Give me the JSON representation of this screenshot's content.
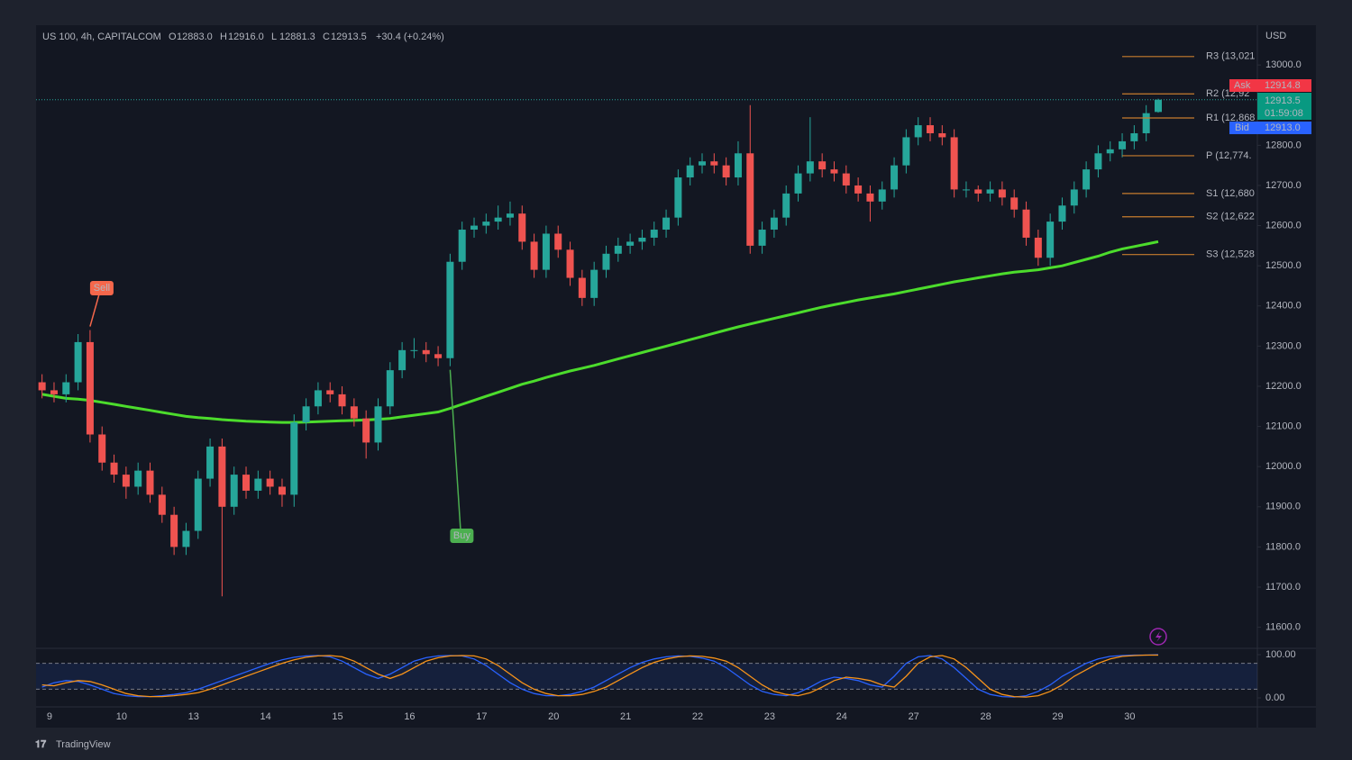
{
  "chart_data": {
    "type": "candlestick",
    "title": "US 100, 4h, CAPITALCOM",
    "ohlc_legend": [
      {
        "label": "O",
        "value": "12883.0"
      },
      {
        "label": "H",
        "value": "12916.0"
      },
      {
        "label": "L",
        "value": "12881.3"
      },
      {
        "label": "C",
        "value": "12913.5"
      }
    ],
    "change": "+30.4 (+0.24%)",
    "currency": "USD",
    "up_color": "#26a69a",
    "down_color": "#ef5350",
    "grid": false,
    "categories": [
      null,
      "9",
      null,
      null,
      null,
      null,
      null,
      "10",
      null,
      null,
      null,
      null,
      null,
      "13",
      null,
      null,
      null,
      null,
      null,
      "14",
      null,
      null,
      null,
      null,
      null,
      "15",
      null,
      null,
      null,
      null,
      null,
      "16",
      null,
      null,
      null,
      null,
      null,
      "17",
      null,
      null,
      null,
      null,
      null,
      "20",
      null,
      null,
      null,
      null,
      null,
      "21",
      null,
      null,
      null,
      null,
      null,
      "22",
      null,
      null,
      null,
      null,
      null,
      "23",
      null,
      null,
      null,
      null,
      null,
      "24",
      null,
      null,
      null,
      null,
      null,
      "27",
      null,
      null,
      null,
      null,
      null,
      "28",
      null,
      null,
      null,
      null,
      null,
      "29",
      null,
      null,
      null,
      null,
      null,
      "30",
      null,
      null
    ],
    "open": [
      12210,
      12190,
      12180,
      12210,
      12310,
      12080,
      12010,
      11980,
      11950,
      11990,
      11930,
      11880,
      11800,
      11840,
      11970,
      12050,
      11900,
      11980,
      11940,
      11970,
      11950,
      11930,
      12110,
      12150,
      12190,
      12180,
      12150,
      12120,
      12060,
      12150,
      12240,
      12290,
      12290,
      12280,
      12270,
      12510,
      12590,
      12600,
      12610,
      12620,
      12630,
      12560,
      12490,
      12580,
      12540,
      12470,
      12420,
      12490,
      12530,
      12550,
      12560,
      12570,
      12590,
      12620,
      12720,
      12750,
      12760,
      12750,
      12720,
      12780,
      12550,
      12590,
      12620,
      12680,
      12730,
      12760,
      12740,
      12730,
      12700,
      12680,
      12660,
      12690,
      12750,
      12820,
      12850,
      12830,
      12820,
      12690,
      12690,
      12680,
      12690,
      12670,
      12640,
      12570,
      12520,
      12610,
      12650,
      12690,
      12740,
      12780,
      12790,
      12810,
      12830,
      12883
    ],
    "high": [
      12230,
      12210,
      12230,
      12330,
      12340,
      12100,
      12030,
      12000,
      12010,
      12010,
      11950,
      11900,
      11860,
      11990,
      12070,
      12070,
      12000,
      12000,
      11990,
      11990,
      11970,
      12130,
      12170,
      12210,
      12210,
      12200,
      12170,
      12140,
      12170,
      12260,
      12310,
      12320,
      12310,
      12300,
      12530,
      12610,
      12620,
      12630,
      12650,
      12660,
      12650,
      12580,
      12600,
      12600,
      12560,
      12490,
      12510,
      12550,
      12570,
      12580,
      12590,
      12610,
      12640,
      12740,
      12770,
      12780,
      12780,
      12770,
      12810,
      12900,
      12610,
      12640,
      12700,
      12750,
      12870,
      12780,
      12760,
      12750,
      12720,
      12700,
      12710,
      12770,
      12840,
      12870,
      12870,
      12850,
      12840,
      12710,
      12700,
      12710,
      12710,
      12690,
      12660,
      12590,
      12630,
      12670,
      12710,
      12760,
      12800,
      12810,
      12830,
      12850,
      12900,
      12916
    ],
    "low": [
      12170,
      12160,
      12160,
      12190,
      12060,
      11990,
      11960,
      11920,
      11930,
      11910,
      11860,
      11780,
      11780,
      11820,
      11950,
      11677,
      11880,
      11920,
      11920,
      11930,
      11900,
      11900,
      12090,
      12130,
      12160,
      12130,
      12100,
      12020,
      12040,
      12130,
      12220,
      12270,
      12260,
      12250,
      12250,
      12490,
      12570,
      12580,
      12590,
      12600,
      12540,
      12470,
      12470,
      12520,
      12450,
      12400,
      12400,
      12470,
      12510,
      12530,
      12540,
      12550,
      12570,
      12600,
      12700,
      12730,
      12730,
      12700,
      12700,
      12530,
      12530,
      12570,
      12600,
      12660,
      12710,
      12720,
      12710,
      12680,
      12660,
      12610,
      12640,
      12670,
      12730,
      12800,
      12810,
      12800,
      12670,
      12670,
      12660,
      12660,
      12650,
      12620,
      12550,
      12500,
      12500,
      12590,
      12630,
      12670,
      12720,
      12760,
      12770,
      12790,
      12810,
      12881.3
    ],
    "close": [
      12190,
      12180,
      12210,
      12310,
      12080,
      12010,
      11980,
      11950,
      11990,
      11930,
      11880,
      11800,
      11840,
      11970,
      12050,
      11900,
      11980,
      11940,
      11970,
      11950,
      11930,
      12110,
      12150,
      12190,
      12180,
      12150,
      12120,
      12060,
      12150,
      12240,
      12290,
      12290,
      12280,
      12270,
      12510,
      12590,
      12600,
      12610,
      12620,
      12630,
      12560,
      12490,
      12580,
      12540,
      12470,
      12420,
      12490,
      12530,
      12550,
      12560,
      12570,
      12590,
      12620,
      12720,
      12750,
      12760,
      12750,
      12720,
      12780,
      12550,
      12590,
      12620,
      12680,
      12730,
      12760,
      12740,
      12730,
      12700,
      12680,
      12660,
      12690,
      12750,
      12820,
      12850,
      12830,
      12820,
      12690,
      12690,
      12680,
      12690,
      12670,
      12640,
      12570,
      12520,
      12610,
      12650,
      12690,
      12740,
      12780,
      12790,
      12810,
      12830,
      12880,
      12913.5
    ],
    "ma": {
      "color": "#4cdc2c",
      "values": [
        12180,
        12175,
        12170,
        12168,
        12165,
        12160,
        12155,
        12150,
        12145,
        12140,
        12135,
        12130,
        12125,
        12122,
        12120,
        12117,
        12115,
        12113,
        12112,
        12111,
        12110,
        12110,
        12111,
        12112,
        12113,
        12114,
        12115,
        12116,
        12118,
        12120,
        12124,
        12128,
        12132,
        12136,
        12145,
        12155,
        12165,
        12175,
        12185,
        12195,
        12205,
        12213,
        12222,
        12230,
        12238,
        12245,
        12252,
        12260,
        12268,
        12276,
        12284,
        12292,
        12300,
        12308,
        12316,
        12324,
        12332,
        12340,
        12348,
        12355,
        12362,
        12369,
        12376,
        12383,
        12390,
        12397,
        12403,
        12409,
        12415,
        12420,
        12425,
        12430,
        12436,
        12442,
        12448,
        12454,
        12460,
        12465,
        12470,
        12475,
        12480,
        12484,
        12487,
        12490,
        12495,
        12500,
        12508,
        12516,
        12524,
        12534,
        12542,
        12548,
        12554,
        12560
      ]
    },
    "ylim": [
      11552,
      13099
    ],
    "yticks": [
      {
        "value": 11600,
        "label": "11600.0"
      },
      {
        "value": 11700,
        "label": "11700.0"
      },
      {
        "value": 11800,
        "label": "11800.0"
      },
      {
        "value": 11900,
        "label": "11900.0"
      },
      {
        "value": 12000,
        "label": "12000.0"
      },
      {
        "value": 12100,
        "label": "12100.0"
      },
      {
        "value": 12200,
        "label": "12200.0"
      },
      {
        "value": 12300,
        "label": "12300.0"
      },
      {
        "value": 12400,
        "label": "12400.0"
      },
      {
        "value": 12500,
        "label": "12500.0"
      },
      {
        "value": 12600,
        "label": "12600.0"
      },
      {
        "value": 12700,
        "label": "12700.0"
      },
      {
        "value": 12800,
        "label": "12800.0"
      },
      {
        "value": 13000,
        "label": "13000.0"
      }
    ],
    "pivots": [
      {
        "label": "R3 (13,021",
        "value": 13021
      },
      {
        "label": "R2 (12,92",
        "value": 12928
      },
      {
        "label": "R1 (12,868",
        "value": 12868
      },
      {
        "label": "P (12,774.",
        "value": 12774
      },
      {
        "label": "S1 (12,680",
        "value": 12680
      },
      {
        "label": "S2 (12,622",
        "value": 12622
      },
      {
        "label": "S3 (12,528",
        "value": 12528
      }
    ],
    "price_tags": {
      "ask": {
        "label": "Ask",
        "value": 12914.8
      },
      "last": {
        "value": 12913.5,
        "countdown": "01:59:08"
      },
      "bid": {
        "label": "Bid",
        "value": 12913,
        "value_label": "12913.0"
      }
    },
    "signals": [
      {
        "text": "Sell"
      },
      {
        "text": "Buy"
      }
    ],
    "oscillator": {
      "ylim": [
        -20.8,
        114.6
      ],
      "yticks": [
        {
          "value": 100,
          "label": "100.00"
        },
        {
          "value": 0,
          "label": "0.00"
        }
      ],
      "levels": [
        80,
        20
      ],
      "series": [
        {
          "color": "#2962ff",
          "values": [
            25,
            35,
            40,
            38,
            30,
            20,
            10,
            5,
            3,
            3,
            5,
            8,
            12,
            20,
            30,
            40,
            50,
            60,
            70,
            80,
            88,
            94,
            97,
            98,
            95,
            85,
            70,
            55,
            45,
            55,
            70,
            85,
            93,
            97,
            98,
            97,
            90,
            75,
            55,
            35,
            20,
            10,
            5,
            5,
            8,
            15,
            25,
            40,
            55,
            70,
            82,
            90,
            95,
            97,
            96,
            92,
            85,
            70,
            50,
            30,
            15,
            8,
            5,
            12,
            25,
            40,
            48,
            45,
            40,
            30,
            25,
            50,
            80,
            95,
            98,
            90,
            70,
            45,
            20,
            8,
            3,
            2,
            5,
            15,
            30,
            50,
            65,
            80,
            90,
            96,
            98,
            99,
            99,
            100
          ]
        },
        {
          "color": "#f7931a",
          "values": [
            30,
            28,
            35,
            40,
            38,
            30,
            20,
            10,
            5,
            3,
            3,
            5,
            8,
            12,
            20,
            30,
            40,
            50,
            60,
            70,
            80,
            88,
            94,
            97,
            98,
            95,
            85,
            70,
            55,
            45,
            55,
            70,
            85,
            93,
            97,
            98,
            97,
            90,
            75,
            55,
            35,
            20,
            10,
            5,
            5,
            8,
            15,
            25,
            40,
            55,
            70,
            82,
            90,
            95,
            97,
            96,
            92,
            85,
            70,
            50,
            30,
            15,
            8,
            5,
            12,
            25,
            40,
            48,
            45,
            40,
            30,
            25,
            50,
            80,
            95,
            98,
            90,
            70,
            45,
            20,
            8,
            3,
            2,
            5,
            15,
            30,
            50,
            65,
            80,
            90,
            96,
            98,
            99,
            99
          ]
        }
      ]
    },
    "brand": "TradingView"
  }
}
